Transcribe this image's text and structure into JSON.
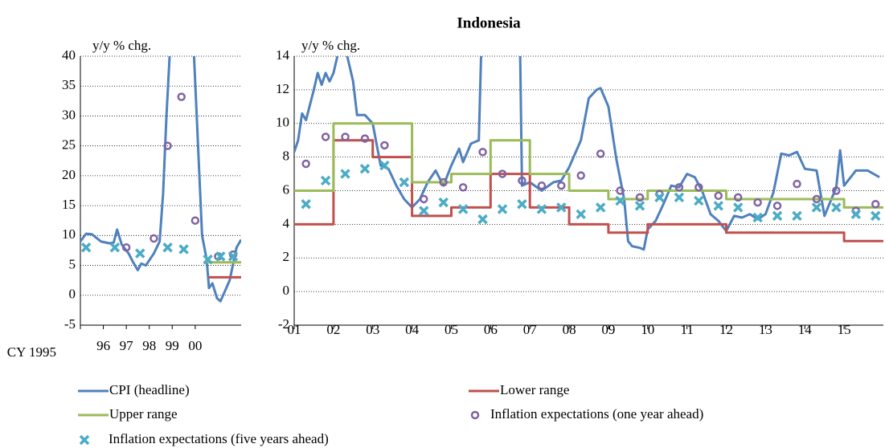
{
  "chart_data": [
    {
      "type": "line",
      "y_label": "y/y % chg.",
      "xlim": [
        1995,
        2002
      ],
      "ylim": [
        -5,
        40
      ],
      "xticks": [
        {
          "value": 1995,
          "label": "CY 1995"
        },
        {
          "value": 1996,
          "label": "96"
        },
        {
          "value": 1997,
          "label": "97"
        },
        {
          "value": 1998,
          "label": "98"
        },
        {
          "value": 1999,
          "label": "99"
        },
        {
          "value": 2000,
          "label": "00"
        }
      ],
      "yticks": [
        -5,
        0,
        5,
        10,
        15,
        20,
        25,
        30,
        35,
        40
      ],
      "grid": true,
      "series": [
        {
          "mark": "line",
          "color": "#4f81bd",
          "x": [
            1995,
            1995.25,
            1995.5,
            1995.9,
            1996.25,
            1996.45,
            1996.6,
            1996.8,
            1997.1,
            1997.3,
            1997.5,
            1997.65,
            1997.85,
            1998.2,
            1998.45,
            1998.6,
            1998.75,
            1998.9,
            1999.1,
            1999.5,
            1999.95,
            2000.3,
            2000.5,
            2000.6,
            2000.75,
            2000.95,
            2001.1,
            2001.5,
            2001.8,
            2002
          ],
          "values": [
            9,
            10.3,
            10.2,
            9,
            8.7,
            8.8,
            11,
            8.5,
            7,
            5.5,
            4.2,
            5.3,
            5,
            7,
            9,
            17,
            30,
            41,
            60,
            50,
            40,
            10,
            6,
            1.2,
            2,
            -0.5,
            -1,
            2.5,
            8,
            9.3
          ]
        },
        {
          "mark": "line",
          "color": "#c0504d",
          "x": [
            2000.6,
            2002
          ],
          "values": [
            3,
            3
          ]
        },
        {
          "mark": "line",
          "color": "#9bbb59",
          "x": [
            2000.5,
            2002
          ],
          "values": [
            5.5,
            5.5
          ]
        },
        {
          "mark": "circle",
          "color": "#8064a2",
          "x": [
            1997.0,
            1998.2,
            1998.8,
            1999.4,
            2000.0,
            2001.0,
            2001.65
          ],
          "values": [
            8,
            9.5,
            25,
            33.2,
            12.5,
            6.5,
            6.8
          ]
        },
        {
          "mark": "x",
          "color": "#4bacc6",
          "x": [
            1995.25,
            1996.5,
            1997.6,
            1998.8,
            1999.5,
            2000.55,
            2001.1,
            2001.65
          ],
          "values": [
            8,
            8,
            7,
            8,
            7.7,
            6,
            6.5,
            6.5
          ]
        }
      ]
    },
    {
      "type": "line",
      "title": "Indonesia",
      "y_label": "y/y % chg.",
      "xlim": [
        2001,
        2016
      ],
      "ylim": [
        -2,
        14
      ],
      "xticks": [
        {
          "value": 2001,
          "label": "01"
        },
        {
          "value": 2002,
          "label": "02"
        },
        {
          "value": 2003,
          "label": "03"
        },
        {
          "value": 2004,
          "label": "04"
        },
        {
          "value": 2005,
          "label": "05"
        },
        {
          "value": 2006,
          "label": "06"
        },
        {
          "value": 2007,
          "label": "07"
        },
        {
          "value": 2008,
          "label": "08"
        },
        {
          "value": 2009,
          "label": "09"
        },
        {
          "value": 2010,
          "label": "10"
        },
        {
          "value": 2011,
          "label": "11"
        },
        {
          "value": 2012,
          "label": "12"
        },
        {
          "value": 2013,
          "label": "13"
        },
        {
          "value": 2014,
          "label": "14"
        },
        {
          "value": 2015,
          "label": "15"
        }
      ],
      "yticks": [
        -2,
        0,
        2,
        4,
        6,
        8,
        10,
        12,
        14
      ],
      "grid": true,
      "series": [
        {
          "name": "CPI (headline)",
          "mark": "line",
          "color": "#4f81bd",
          "x": [
            2001.0,
            2001.1,
            2001.2,
            2001.3,
            2001.5,
            2001.6,
            2001.7,
            2001.8,
            2001.9,
            2002.0,
            2002.15,
            2002.35,
            2002.5,
            2002.6,
            2002.8,
            2003.0,
            2003.2,
            2003.4,
            2003.6,
            2003.8,
            2004.0,
            2004.2,
            2004.4,
            2004.6,
            2004.8,
            2005.0,
            2005.2,
            2005.3,
            2005.5,
            2005.7,
            2005.8,
            2006.0,
            2006.6,
            2006.75,
            2006.8,
            2007.0,
            2007.3,
            2007.6,
            2007.8,
            2008.0,
            2008.3,
            2008.5,
            2008.7,
            2008.8,
            2009.0,
            2009.2,
            2009.4,
            2009.5,
            2009.6,
            2009.8,
            2009.9,
            2010.0,
            2010.2,
            2010.4,
            2010.6,
            2010.8,
            2011.0,
            2011.2,
            2011.4,
            2011.6,
            2011.8,
            2012.0,
            2012.2,
            2012.4,
            2012.6,
            2012.8,
            2013.0,
            2013.2,
            2013.4,
            2013.6,
            2013.8,
            2014.0,
            2014.3,
            2014.5,
            2014.8,
            2014.9,
            2015.0,
            2015.3,
            2015.6,
            2015.9
          ],
          "values": [
            8.3,
            9,
            10.6,
            10.2,
            12,
            13,
            12.3,
            13,
            12.5,
            13,
            14.5,
            14,
            12.5,
            10.5,
            10.5,
            10,
            7.5,
            7.3,
            6.3,
            5.5,
            5,
            5.5,
            6.5,
            7.2,
            6.3,
            7.5,
            8.5,
            7.7,
            8.8,
            9,
            17.8,
            17,
            15,
            14.5,
            6.3,
            6.5,
            6,
            6.5,
            6.6,
            7.4,
            9,
            11.5,
            12,
            12.1,
            11,
            7.9,
            5.5,
            3,
            2.7,
            2.6,
            2.5,
            3.7,
            4.2,
            5.2,
            6.3,
            6.2,
            7,
            6.8,
            5.9,
            4.6,
            4.2,
            3.6,
            4.5,
            4.4,
            4.6,
            4.3,
            4.6,
            5.9,
            8.2,
            8.1,
            8.3,
            7.3,
            7.2,
            4.5,
            6.2,
            8.4,
            6.3,
            7.2,
            7.2,
            6.8
          ]
        },
        {
          "name": "Lower range",
          "mark": "line",
          "color": "#c0504d",
          "x": [
            2001,
            2002,
            2002,
            2003,
            2003,
            2004,
            2004,
            2005,
            2005,
            2006,
            2006,
            2007,
            2007,
            2008,
            2008,
            2009,
            2009,
            2010,
            2010,
            2012,
            2012,
            2015,
            2015,
            2016
          ],
          "values": [
            4,
            4,
            9,
            9,
            8,
            8,
            4.5,
            4.5,
            5,
            5,
            7,
            7,
            5,
            5,
            4,
            4,
            3.5,
            3.5,
            4,
            4,
            3.5,
            3.5,
            3,
            3
          ]
        },
        {
          "name": "Upper range",
          "mark": "line",
          "color": "#9bbb59",
          "x": [
            2001,
            2002,
            2002,
            2003,
            2003,
            2004,
            2004,
            2005,
            2005,
            2006,
            2006,
            2007,
            2007,
            2008,
            2008,
            2009,
            2009,
            2010,
            2010,
            2012,
            2012,
            2015,
            2015,
            2016
          ],
          "values": [
            6,
            6,
            10,
            10,
            10,
            10,
            6.5,
            6.5,
            7,
            7,
            9,
            9,
            7,
            7,
            6,
            6,
            5.5,
            5.5,
            6,
            6,
            5.5,
            5.5,
            5,
            5
          ]
        },
        {
          "name": "Inflation expectations (one year ahead)",
          "mark": "circle",
          "color": "#8064a2",
          "x": [
            2001.3,
            2001.8,
            2002.3,
            2002.8,
            2003.3,
            2004.3,
            2004.8,
            2005.3,
            2005.8,
            2006.3,
            2006.8,
            2007.3,
            2007.8,
            2008.3,
            2008.8,
            2009.3,
            2009.8,
            2010.3,
            2010.8,
            2011.3,
            2011.8,
            2012.3,
            2012.8,
            2013.3,
            2013.8,
            2014.3,
            2014.8,
            2015.3,
            2015.8
          ],
          "values": [
            7.6,
            9.2,
            9.2,
            9.1,
            8.7,
            5.5,
            6.5,
            6.2,
            8.3,
            7,
            6.6,
            6.3,
            6.3,
            6.9,
            8.2,
            6.0,
            5.6,
            5.8,
            6.2,
            6.2,
            5.7,
            5.6,
            5.3,
            5.1,
            6.4,
            5.5,
            6.0,
            4.8,
            5.2
          ]
        },
        {
          "name": "Inflation expectations (five years ahead)",
          "mark": "x",
          "color": "#4bacc6",
          "x": [
            2001.3,
            2001.8,
            2002.3,
            2002.8,
            2003.3,
            2003.8,
            2004.3,
            2004.8,
            2005.3,
            2005.8,
            2006.3,
            2006.8,
            2007.3,
            2007.8,
            2008.3,
            2008.8,
            2009.3,
            2009.8,
            2010.3,
            2010.8,
            2011.3,
            2011.8,
            2012.3,
            2012.8,
            2013.3,
            2013.8,
            2014.3,
            2014.8,
            2015.3,
            2015.8
          ],
          "values": [
            5.2,
            6.6,
            7.0,
            7.3,
            7.5,
            6.5,
            4.8,
            5.3,
            4.9,
            4.3,
            4.9,
            5.2,
            4.9,
            5.0,
            4.6,
            5.0,
            5.4,
            5.1,
            5.6,
            5.6,
            5.4,
            5.1,
            5.0,
            4.4,
            4.5,
            4.5,
            5.0,
            5.0,
            4.6,
            4.5
          ]
        }
      ]
    }
  ]
}
